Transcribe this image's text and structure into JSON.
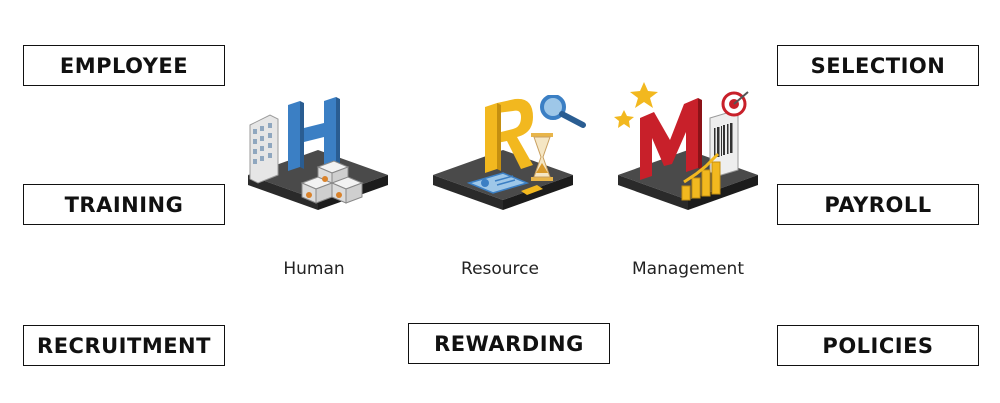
{
  "left_labels": [
    "EMPLOYEE",
    "TRAINING",
    "RECRUITMENT"
  ],
  "right_labels": [
    "SELECTION",
    "PAYROLL",
    "POLICIES"
  ],
  "center_label": "REWARDING",
  "captions": [
    "Human",
    "Resource",
    "Management"
  ],
  "tiles": [
    {
      "letter": "H",
      "icon": "office-building-with-safes-icon"
    },
    {
      "letter": "R",
      "icon": "magnifier-hourglass-idcard-icon"
    },
    {
      "letter": "M",
      "icon": "stars-target-growth-chart-icon"
    }
  ],
  "colors": {
    "border": "#111111",
    "H": "#3b7fc4",
    "R": "#f2b81f",
    "M": "#c8202a",
    "platform_top": "#4a4a4a",
    "platform_side": "#2a2a2a"
  }
}
